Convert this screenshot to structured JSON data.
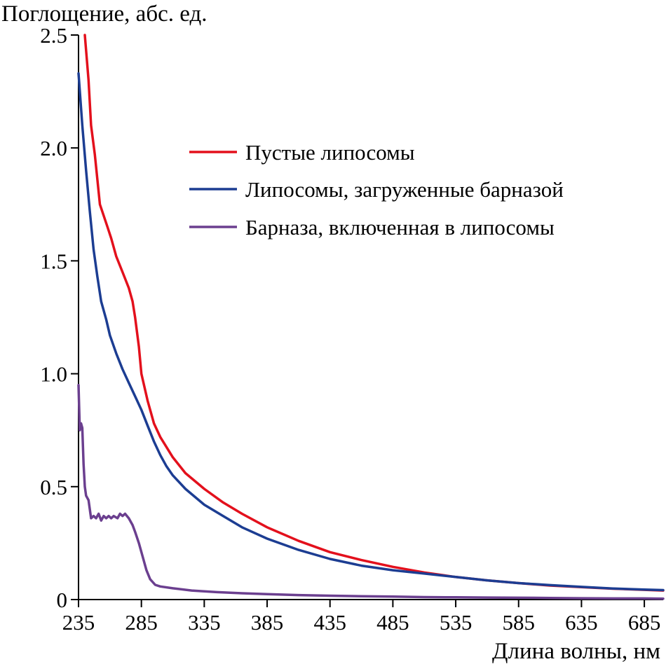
{
  "chart_data": {
    "type": "line",
    "title": "",
    "ylabel": "Поглощение, абс. ед.",
    "xlabel": "Длина волны, нм",
    "xlim": [
      235,
      700
    ],
    "ylim": [
      0,
      2.5
    ],
    "x_ticks": [
      "235",
      "285",
      "335",
      "385",
      "435",
      "485",
      "535",
      "585",
      "635",
      "685"
    ],
    "y_ticks": [
      "0",
      "0.5",
      "1.0",
      "1.5",
      "2.0",
      "2.5"
    ],
    "grid": false,
    "legend_position": "top-right",
    "series": [
      {
        "name": "Пустые липосомы",
        "color": "#e3101c",
        "points": [
          [
            240,
            2.5
          ],
          [
            243,
            2.3
          ],
          [
            245,
            2.1
          ],
          [
            248,
            1.97
          ],
          [
            252,
            1.75
          ],
          [
            258,
            1.65
          ],
          [
            261,
            1.6
          ],
          [
            265,
            1.52
          ],
          [
            270,
            1.45
          ],
          [
            275,
            1.38
          ],
          [
            278,
            1.32
          ],
          [
            280,
            1.25
          ],
          [
            283,
            1.12
          ],
          [
            285,
            1.0
          ],
          [
            290,
            0.88
          ],
          [
            295,
            0.78
          ],
          [
            300,
            0.72
          ],
          [
            310,
            0.63
          ],
          [
            320,
            0.56
          ],
          [
            335,
            0.49
          ],
          [
            350,
            0.43
          ],
          [
            365,
            0.38
          ],
          [
            385,
            0.32
          ],
          [
            410,
            0.26
          ],
          [
            435,
            0.21
          ],
          [
            460,
            0.175
          ],
          [
            485,
            0.145
          ],
          [
            510,
            0.12
          ],
          [
            535,
            0.1
          ],
          [
            560,
            0.085
          ],
          [
            585,
            0.073
          ],
          [
            610,
            0.062
          ],
          [
            635,
            0.055
          ],
          [
            660,
            0.048
          ],
          [
            685,
            0.043
          ],
          [
            700,
            0.04
          ]
        ]
      },
      {
        "name": "Липосомы, загруженные барназой",
        "color": "#1c3d92",
        "points": [
          [
            235,
            2.33
          ],
          [
            238,
            2.1
          ],
          [
            241,
            1.9
          ],
          [
            244,
            1.72
          ],
          [
            247,
            1.55
          ],
          [
            250,
            1.43
          ],
          [
            253,
            1.32
          ],
          [
            257,
            1.24
          ],
          [
            260,
            1.17
          ],
          [
            265,
            1.09
          ],
          [
            270,
            1.02
          ],
          [
            275,
            0.96
          ],
          [
            280,
            0.9
          ],
          [
            285,
            0.84
          ],
          [
            290,
            0.77
          ],
          [
            295,
            0.7
          ],
          [
            300,
            0.64
          ],
          [
            305,
            0.59
          ],
          [
            310,
            0.55
          ],
          [
            320,
            0.49
          ],
          [
            335,
            0.42
          ],
          [
            350,
            0.37
          ],
          [
            365,
            0.32
          ],
          [
            385,
            0.27
          ],
          [
            410,
            0.22
          ],
          [
            435,
            0.18
          ],
          [
            460,
            0.15
          ],
          [
            485,
            0.13
          ],
          [
            510,
            0.115
          ],
          [
            535,
            0.1
          ],
          [
            560,
            0.085
          ],
          [
            585,
            0.073
          ],
          [
            610,
            0.064
          ],
          [
            635,
            0.056
          ],
          [
            660,
            0.049
          ],
          [
            685,
            0.044
          ],
          [
            700,
            0.042
          ]
        ]
      },
      {
        "name": "Барназа, включенная в липосомы",
        "color": "#6b3f8f",
        "points": [
          [
            235,
            0.95
          ],
          [
            236,
            0.75
          ],
          [
            237,
            0.78
          ],
          [
            238,
            0.76
          ],
          [
            239,
            0.6
          ],
          [
            240,
            0.5
          ],
          [
            241,
            0.46
          ],
          [
            243,
            0.44
          ],
          [
            245,
            0.36
          ],
          [
            247,
            0.37
          ],
          [
            249,
            0.36
          ],
          [
            251,
            0.38
          ],
          [
            253,
            0.35
          ],
          [
            255,
            0.37
          ],
          [
            257,
            0.36
          ],
          [
            259,
            0.37
          ],
          [
            261,
            0.36
          ],
          [
            263,
            0.37
          ],
          [
            266,
            0.36
          ],
          [
            268,
            0.38
          ],
          [
            270,
            0.37
          ],
          [
            272,
            0.38
          ],
          [
            275,
            0.36
          ],
          [
            278,
            0.33
          ],
          [
            280,
            0.3
          ],
          [
            283,
            0.25
          ],
          [
            286,
            0.19
          ],
          [
            289,
            0.13
          ],
          [
            292,
            0.09
          ],
          [
            296,
            0.065
          ],
          [
            300,
            0.058
          ],
          [
            310,
            0.05
          ],
          [
            325,
            0.04
          ],
          [
            345,
            0.033
          ],
          [
            365,
            0.028
          ],
          [
            385,
            0.024
          ],
          [
            410,
            0.02
          ],
          [
            435,
            0.017
          ],
          [
            460,
            0.015
          ],
          [
            485,
            0.013
          ],
          [
            510,
            0.011
          ],
          [
            535,
            0.01
          ],
          [
            560,
            0.009
          ],
          [
            585,
            0.008
          ],
          [
            610,
            0.007
          ],
          [
            635,
            0.006
          ],
          [
            660,
            0.005
          ],
          [
            685,
            0.005
          ],
          [
            700,
            0.004
          ]
        ]
      }
    ]
  }
}
